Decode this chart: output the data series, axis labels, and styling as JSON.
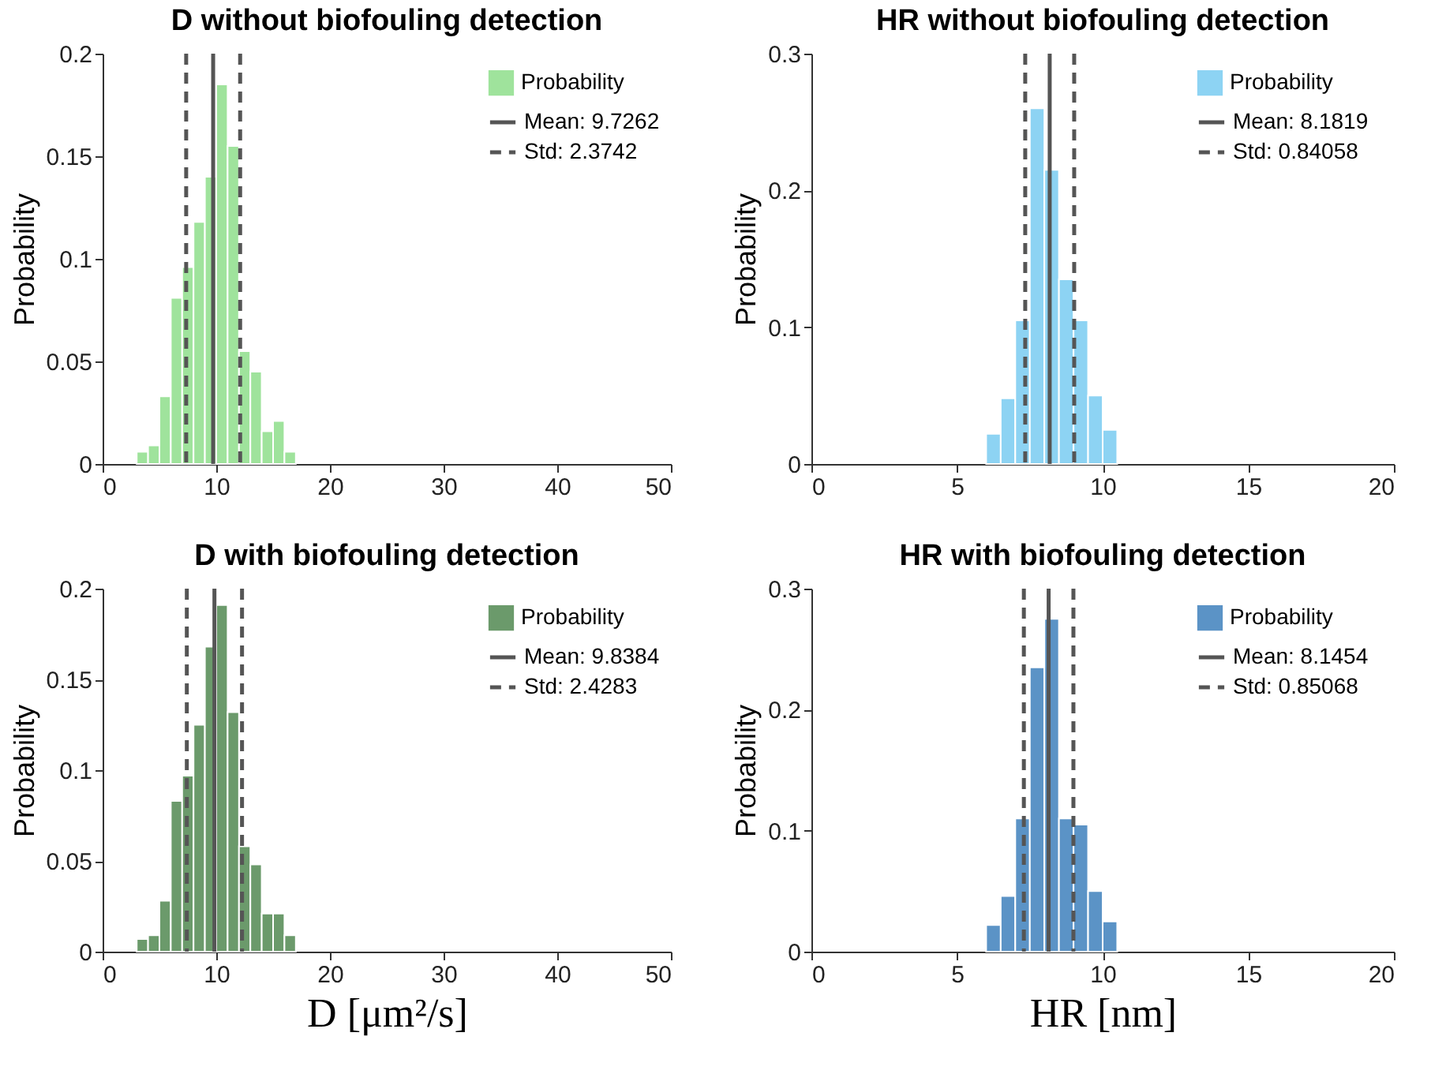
{
  "chart_data": [
    {
      "type": "histogram",
      "title": "D without biofouling detection",
      "ylabel": "Probability",
      "bins": [
        3,
        4,
        5,
        6,
        7,
        8,
        9,
        10,
        11,
        12,
        13,
        14,
        15,
        16,
        17
      ],
      "series": [
        {
          "name": "Probability",
          "color": "#9fe39c",
          "values": [
            0.006,
            0.009,
            0.033,
            0.081,
            0.096,
            0.118,
            0.14,
            0.185,
            0.155,
            0.055,
            0.045,
            0.016,
            0.021,
            0.006
          ]
        }
      ],
      "xlim": [
        0,
        50
      ],
      "xticks": [
        0,
        10,
        20,
        30,
        40,
        50
      ],
      "ylim": [
        0,
        0.2
      ],
      "yticks": [
        0,
        0.05,
        0.1,
        0.15,
        0.2
      ],
      "grid": false,
      "legend": "top right",
      "annotations": [
        "Mean: 9.7262",
        "Std: 2.3742"
      ],
      "ref_lines": [
        {
          "axis": "x",
          "value": 9.7262,
          "label": null,
          "line_style": "solid",
          "color": "#555555"
        },
        {
          "axis": "x",
          "value": 7.352,
          "label": null,
          "line_style": "dashed",
          "color": "#555555"
        },
        {
          "axis": "x",
          "value": 12.1004,
          "label": null,
          "line_style": "dashed",
          "color": "#555555"
        }
      ]
    },
    {
      "type": "histogram",
      "title": "HR without biofouling detection",
      "ylabel": "Probability",
      "bins": [
        6,
        6.5,
        7,
        7.5,
        8,
        8.5,
        9,
        9.5,
        10,
        10.5
      ],
      "series": [
        {
          "name": "Probability",
          "color": "#8dd3f3",
          "values": [
            0.022,
            0.048,
            0.105,
            0.26,
            0.215,
            0.135,
            0.105,
            0.05,
            0.025
          ]
        }
      ],
      "xlim": [
        0,
        20
      ],
      "xticks": [
        0,
        5,
        10,
        15,
        20
      ],
      "ylim": [
        0,
        0.3
      ],
      "yticks": [
        0,
        0.1,
        0.2,
        0.3
      ],
      "grid": false,
      "legend": "top right",
      "annotations": [
        "Mean: 8.1819",
        "Std: 0.84058"
      ],
      "ref_lines": [
        {
          "axis": "x",
          "value": 8.1819,
          "label": null,
          "line_style": "solid",
          "color": "#555555"
        },
        {
          "axis": "x",
          "value": 7.34132,
          "label": null,
          "line_style": "dashed",
          "color": "#555555"
        },
        {
          "axis": "x",
          "value": 9.02248,
          "label": null,
          "line_style": "dashed",
          "color": "#555555"
        }
      ]
    },
    {
      "type": "histogram",
      "title": "D with biofouling detection",
      "ylabel": "Probability",
      "xlabel": "D [μm²/s]",
      "bins": [
        3,
        4,
        5,
        6,
        7,
        8,
        9,
        10,
        11,
        12,
        13,
        14,
        15,
        16,
        17
      ],
      "series": [
        {
          "name": "Probability",
          "color": "#6b9a6b",
          "values": [
            0.007,
            0.009,
            0.028,
            0.083,
            0.097,
            0.125,
            0.168,
            0.191,
            0.132,
            0.058,
            0.048,
            0.021,
            0.021,
            0.009
          ]
        }
      ],
      "xlim": [
        0,
        50
      ],
      "xticks": [
        0,
        10,
        20,
        30,
        40,
        50
      ],
      "ylim": [
        0,
        0.2
      ],
      "yticks": [
        0,
        0.05,
        0.1,
        0.15,
        0.2
      ],
      "grid": false,
      "legend": "top right",
      "annotations": [
        "Mean: 9.8384",
        "Std: 2.4283"
      ],
      "ref_lines": [
        {
          "axis": "x",
          "value": 9.8384,
          "label": null,
          "line_style": "solid",
          "color": "#555555"
        },
        {
          "axis": "x",
          "value": 7.4101,
          "label": null,
          "line_style": "dashed",
          "color": "#555555"
        },
        {
          "axis": "x",
          "value": 12.2667,
          "label": null,
          "line_style": "dashed",
          "color": "#555555"
        }
      ]
    },
    {
      "type": "histogram",
      "title": "HR with biofouling detection",
      "ylabel": "Probability",
      "xlabel": "HR [nm]",
      "bins": [
        6,
        6.5,
        7,
        7.5,
        8,
        8.5,
        9,
        9.5,
        10,
        10.5
      ],
      "series": [
        {
          "name": "Probability",
          "color": "#5b93c6",
          "values": [
            0.022,
            0.046,
            0.11,
            0.235,
            0.275,
            0.11,
            0.105,
            0.05,
            0.025
          ]
        }
      ],
      "xlim": [
        0,
        20
      ],
      "xticks": [
        0,
        5,
        10,
        15,
        20
      ],
      "ylim": [
        0,
        0.3
      ],
      "yticks": [
        0,
        0.1,
        0.2,
        0.3
      ],
      "grid": false,
      "legend": "top right",
      "annotations": [
        "Mean: 8.1454",
        "Std: 0.85068"
      ],
      "ref_lines": [
        {
          "axis": "x",
          "value": 8.1454,
          "label": null,
          "line_style": "solid",
          "color": "#555555"
        },
        {
          "axis": "x",
          "value": 7.29472,
          "label": null,
          "line_style": "dashed",
          "color": "#555555"
        },
        {
          "axis": "x",
          "value": 8.99608,
          "label": null,
          "line_style": "dashed",
          "color": "#555555"
        }
      ]
    }
  ]
}
